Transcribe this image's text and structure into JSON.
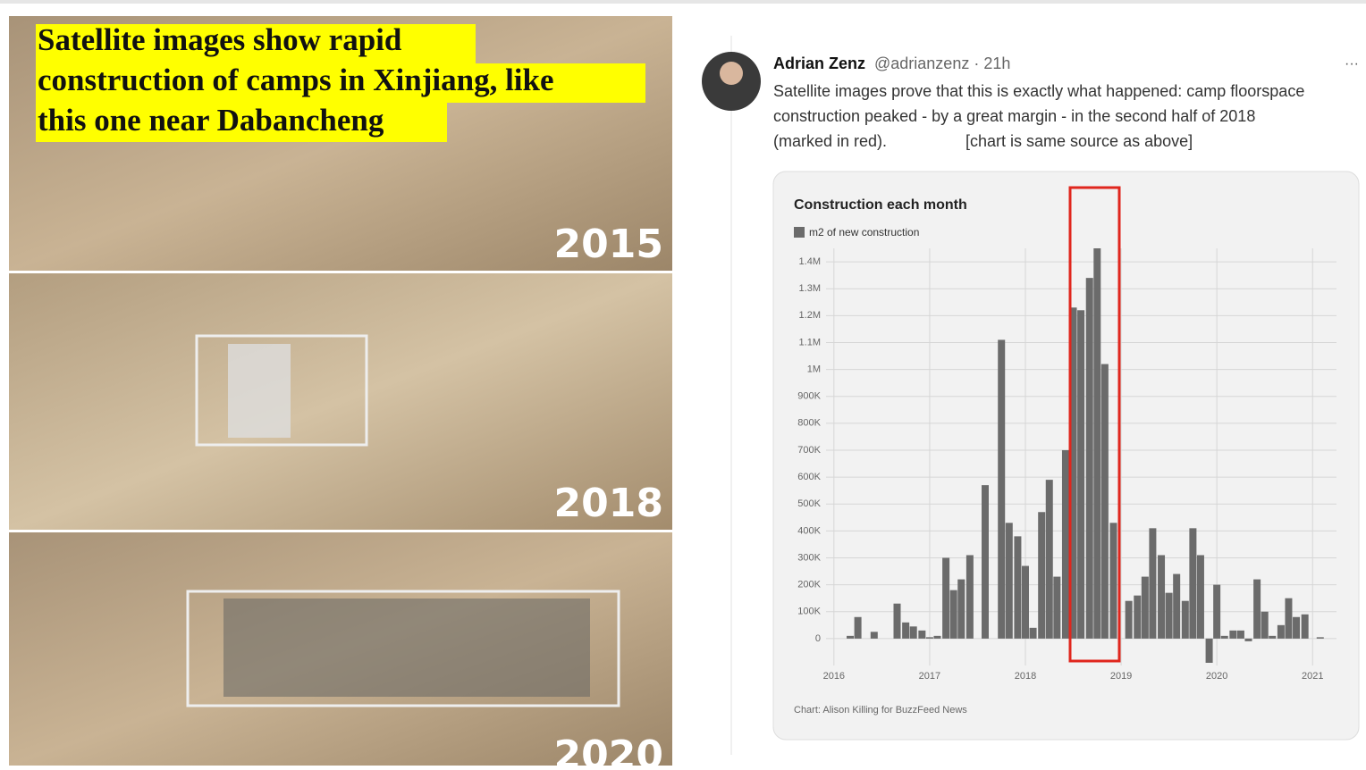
{
  "left_panel": {
    "heading_lines": [
      "Satellite images show rapid",
      "construction of camps in Xinjiang, like",
      "this one near Dabancheng"
    ],
    "years": [
      "2015",
      "2018",
      "2020"
    ]
  },
  "tweet": {
    "author": "Adrian Zenz",
    "handle": "@adrianzenz · 21h",
    "more": "···",
    "text_lines": [
      "Satellite images prove that this is exactly what happened: camp floorspace",
      "construction peaked - by a great margin - in the second half of 2018",
      "(marked in red).",
      "[chart is same source as above]"
    ]
  },
  "chart_data": {
    "type": "bar",
    "title": "Construction each month",
    "source": "Chart: Alison Killing for BuzzFeed News",
    "x": [
      2016.17,
      2016.25,
      2016.42,
      2016.66,
      2016.75,
      2016.83,
      2016.92,
      2017.0,
      2017.08,
      2017.17,
      2017.25,
      2017.33,
      2017.42,
      2017.58,
      2017.75,
      2017.83,
      2017.92,
      2018.0,
      2018.08,
      2018.17,
      2018.25,
      2018.33,
      2018.42,
      2018.5,
      2018.58,
      2018.67,
      2018.75,
      2018.83,
      2018.92,
      2019.08,
      2019.17,
      2019.25,
      2019.33,
      2019.42,
      2019.5,
      2019.58,
      2019.67,
      2019.75,
      2019.83,
      2019.92,
      2020.0,
      2020.08,
      2020.17,
      2020.25,
      2020.33,
      2020.42,
      2020.5,
      2020.58,
      2020.67,
      2020.75,
      2020.83,
      2020.92,
      2021.08
    ],
    "series": [
      {
        "name": "m2 of new construction",
        "color": "#6b6b6b",
        "values": [
          10000,
          80000,
          25000,
          130000,
          60000,
          45000,
          30000,
          5000,
          10000,
          300000,
          180000,
          220000,
          310000,
          570000,
          1110000,
          430000,
          380000,
          270000,
          40000,
          470000,
          590000,
          230000,
          700000,
          1230000,
          1220000,
          1340000,
          1450000,
          1020000,
          430000,
          140000,
          160000,
          230000,
          410000,
          310000,
          170000,
          240000,
          140000,
          410000,
          310000,
          -90000,
          200000,
          10000,
          30000,
          30000,
          -10000,
          220000,
          100000,
          10000,
          50000,
          150000,
          80000,
          90000,
          5000
        ]
      }
    ],
    "xlim": [
      2015.6,
      2021.25
    ],
    "xticks": [
      2016,
      2017,
      2018,
      2019,
      2020,
      2021
    ],
    "ylim": [
      -100000,
      1450000
    ],
    "yticks": [
      {
        "value": 0,
        "label": "0"
      },
      {
        "value": 100000,
        "label": "100K"
      },
      {
        "value": 200000,
        "label": "200K"
      },
      {
        "value": 300000,
        "label": "300K"
      },
      {
        "value": 400000,
        "label": "400K"
      },
      {
        "value": 500000,
        "label": "500K"
      },
      {
        "value": 600000,
        "label": "600K"
      },
      {
        "value": 700000,
        "label": "700K"
      },
      {
        "value": 800000,
        "label": "800K"
      },
      {
        "value": 900000,
        "label": "900K"
      },
      {
        "value": 1000000,
        "label": "1M"
      },
      {
        "value": 1100000,
        "label": "1.1M"
      },
      {
        "value": 1200000,
        "label": "1.2M"
      },
      {
        "value": 1300000,
        "label": "1.3M"
      },
      {
        "value": 1400000,
        "label": "1.4M"
      }
    ],
    "grid": true
  }
}
